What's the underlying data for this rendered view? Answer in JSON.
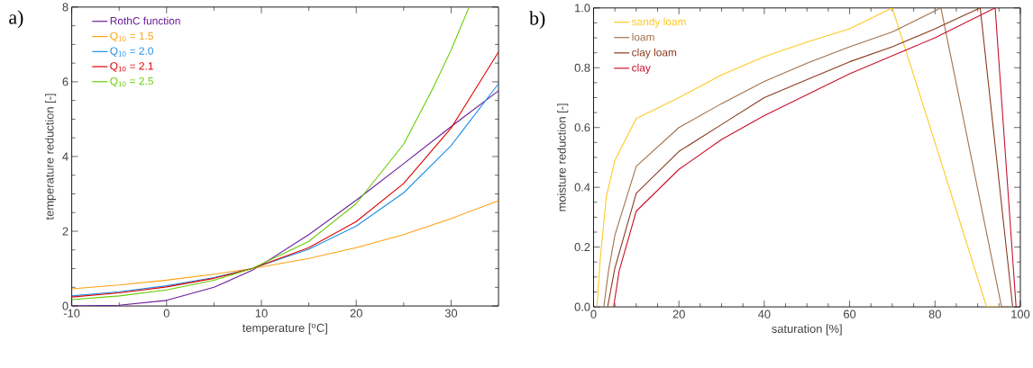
{
  "chart_data": [
    {
      "type": "line",
      "xlabel": "temperature [$^{o}$C]",
      "ylabel": "temperature reduction [-]",
      "annotations": [
        "a)"
      ],
      "xlim": [
        -10,
        35
      ],
      "ylim": [
        0,
        8
      ],
      "xticks": [
        -10,
        0,
        10,
        20,
        30
      ],
      "yticks": [
        0,
        2,
        4,
        6,
        8
      ],
      "legend": "top left",
      "series": [
        {
          "name": "RothC function",
          "color": "#6a1b9a",
          "x": [
            -10,
            -5,
            0,
            5,
            9,
            10,
            15,
            20,
            25,
            30,
            35
          ],
          "values": [
            0.0,
            0.02,
            0.15,
            0.5,
            0.95,
            1.1,
            1.91,
            2.83,
            3.81,
            4.8,
            5.76
          ]
        },
        {
          "name": "Q$_{10}$ = 1.5",
          "color": "#ffa010",
          "x": [
            -10,
            -5,
            0,
            5,
            9,
            15,
            20,
            25,
            30,
            35
          ],
          "values": [
            0.46,
            0.56,
            0.69,
            0.85,
            1.0,
            1.27,
            1.56,
            1.91,
            2.34,
            2.82
          ]
        },
        {
          "name": "Q$_{10}$ = 2.0",
          "color": "#1e8fe8",
          "x": [
            -10,
            -5,
            0,
            5,
            9,
            15,
            20,
            25,
            30,
            35
          ],
          "values": [
            0.27,
            0.38,
            0.54,
            0.76,
            1.0,
            1.52,
            2.14,
            3.03,
            4.29,
            5.95
          ]
        },
        {
          "name": "Q$_{10}$ = 2.1",
          "color": "#e00000",
          "x": [
            -10,
            -5,
            0,
            5,
            9,
            15,
            20,
            25,
            30,
            35
          ],
          "values": [
            0.24,
            0.35,
            0.51,
            0.74,
            1.0,
            1.56,
            2.26,
            3.28,
            4.76,
            6.8
          ]
        },
        {
          "name": "Q$_{10}$ = 2.5",
          "color": "#66cc00",
          "x": [
            -10,
            -5,
            0,
            5,
            9,
            15,
            20,
            25,
            28,
            30,
            31.9
          ],
          "values": [
            0.17,
            0.27,
            0.43,
            0.69,
            1.0,
            1.73,
            2.74,
            4.33,
            5.78,
            6.85,
            8.0
          ]
        }
      ]
    },
    {
      "type": "line",
      "xlabel": "saturation [%]",
      "ylabel": "moisture reduction [-]",
      "annotations": [
        "b)"
      ],
      "xlim": [
        0,
        100
      ],
      "ylim": [
        0,
        1
      ],
      "xticks": [
        0,
        20,
        40,
        60,
        80,
        100
      ],
      "yticks": [
        {
          "value": 0,
          "label": "0.0"
        },
        {
          "value": 0.2,
          "label": "0.2"
        },
        {
          "value": 0.4,
          "label": "0.4"
        },
        {
          "value": 0.6,
          "label": "0.6"
        },
        {
          "value": 0.8,
          "label": "0.8"
        },
        {
          "value": 1.0,
          "label": "1.0"
        }
      ],
      "legend": "top left",
      "series": [
        {
          "name": "sandy loam",
          "color": "#ffc820",
          "x": [
            0.8,
            1.5,
            3,
            5,
            10,
            20,
            30,
            40,
            50,
            60,
            70,
            80,
            92.1,
            95.5
          ],
          "values": [
            0,
            0.15,
            0.37,
            0.49,
            0.63,
            0.7,
            0.776,
            0.837,
            0.886,
            0.93,
            1.0,
            0.55,
            0,
            0
          ]
        },
        {
          "name": "loam",
          "color": "#a0704a",
          "x": [
            2.4,
            3.5,
            5,
            10,
            20,
            30,
            40,
            50,
            60,
            70,
            81.4,
            95.6,
            97.5
          ],
          "values": [
            0,
            0.12,
            0.24,
            0.47,
            0.6,
            0.68,
            0.754,
            0.815,
            0.87,
            0.92,
            1.0,
            0,
            0
          ]
        },
        {
          "name": "clay loam",
          "color": "#8b3a1e",
          "x": [
            3.3,
            5,
            10,
            20,
            30,
            40,
            50,
            60,
            70,
            80,
            90.6,
            98.2
          ],
          "values": [
            0,
            0.13,
            0.38,
            0.52,
            0.61,
            0.7,
            0.76,
            0.82,
            0.87,
            0.93,
            1.0,
            0
          ]
        },
        {
          "name": "clay",
          "color": "#c8102e",
          "x": [
            4.7,
            6,
            10,
            20,
            30,
            40,
            50,
            60,
            70,
            80,
            94.1,
            99.0
          ],
          "values": [
            0,
            0.12,
            0.32,
            0.46,
            0.56,
            0.64,
            0.71,
            0.78,
            0.84,
            0.9,
            1.0,
            0
          ]
        }
      ]
    }
  ]
}
